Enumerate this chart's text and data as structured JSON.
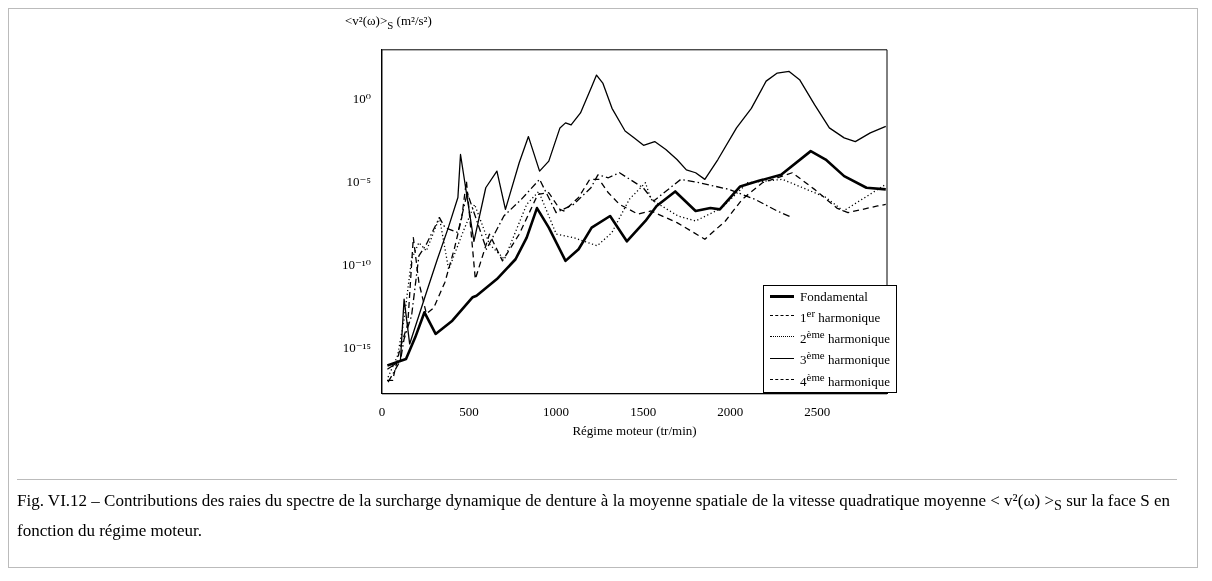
{
  "chart_data": {
    "type": "line",
    "ylabel": "<v²(ω)>$_{S}$ (m²/s²)",
    "xlabel": "Régime moteur (tr/min)",
    "annotations": [
      "Fig. VI.12 – Contributions des raies du spectre de la surcharge dynamique de denture à la moyenne spatiale de la vitesse quadratique moyenne < v²(ω) >$_{S}$ sur la face S en fonction du régime moteur."
    ],
    "xlim": [
      0,
      2900
    ],
    "xticks": [
      0,
      500,
      1000,
      1500,
      2000,
      2500
    ],
    "ylim": [
      2e-18,
      1000
    ],
    "log": "y",
    "yticks": [
      {
        "value": 1e-15,
        "label": "10⁻¹⁵"
      },
      {
        "value": 1e-10,
        "label": "10⁻¹⁰"
      },
      {
        "value": 1e-05,
        "label": "10⁻⁵"
      },
      {
        "value": 1,
        "label": "10⁰"
      }
    ],
    "grid": false,
    "legend": "bottom right",
    "marker": "none",
    "series": [
      {
        "name": "Fondamental",
        "color": "#000000",
        "line_style": "solid",
        "x": [
          31,
          138,
          191,
          244,
          308,
          404,
          521,
          543,
          660,
          767,
          831,
          890,
          958,
          1054,
          1129,
          1204,
          1310,
          1406,
          1513,
          1577,
          1684,
          1801,
          1886,
          1940,
          2057,
          2164,
          2292,
          2462,
          2548,
          2654,
          2782,
          2893
        ],
        "values": [
          1e-16,
          2.5e-16,
          5e-15,
          1.6e-13,
          8e-15,
          5e-14,
          1.3e-12,
          1.6e-12,
          1.6e-11,
          2.5e-10,
          5e-09,
          3e-07,
          2e-08,
          2e-10,
          1e-09,
          2e-08,
          1e-07,
          3e-09,
          5e-08,
          4e-07,
          3e-06,
          2e-07,
          3e-07,
          2.5e-07,
          6e-06,
          1.3e-05,
          3e-05,
          0.0008,
          0.00025,
          2.5e-05,
          5e-06,
          4e-06
        ]
      },
      {
        "name": "1$^{er}$ harmonique",
        "color": "#000000",
        "line_style": "dashed",
        "x": [
          29,
          61,
          106,
          148,
          180,
          212,
          255,
          297,
          361,
          415,
          458,
          485,
          536,
          617,
          692,
          788,
          895,
          958,
          1022,
          1044,
          1129,
          1193,
          1246,
          1300,
          1364,
          1470,
          1545,
          1694,
          1854,
          1972,
          2068,
          2185,
          2356,
          2484,
          2612,
          2676,
          2846,
          2893
        ],
        "values": [
          1.3e-17,
          1.3e-17,
          1.3e-15,
          3e-14,
          5e-09,
          1e-11,
          1.3e-13,
          3e-13,
          1e-11,
          1e-09,
          8e-08,
          1.3e-05,
          1.6e-11,
          8e-09,
          2e-10,
          8e-09,
          2e-06,
          2.5e-06,
          2.5e-07,
          2e-07,
          1.3e-06,
          1.6e-05,
          1.6e-05,
          2.5e-06,
          5e-07,
          1.3e-07,
          2e-07,
          4e-08,
          4e-09,
          5e-08,
          1e-06,
          1e-05,
          4e-05,
          4e-06,
          3e-07,
          1.6e-07,
          4e-07,
          5e-07
        ]
      },
      {
        "name": "2$^{ème}$ harmonique",
        "color": "#000000",
        "line_style": "dotted",
        "x": [
          35,
          90,
          127,
          170,
          212,
          255,
          330,
          383,
          468,
          532,
          617,
          703,
          831,
          900,
          1001,
          1100,
          1236,
          1320,
          1420,
          1513,
          1545,
          1700,
          1801,
          1950,
          2100,
          2300,
          2550,
          2650,
          2893
        ],
        "values": [
          2e-17,
          4e-16,
          6e-14,
          2.5e-10,
          2.5e-09,
          8e-10,
          8e-08,
          6e-11,
          1.3e-08,
          5e-07,
          2e-09,
          2.5e-10,
          5e-07,
          3e-06,
          8e-09,
          5e-09,
          1.6e-09,
          1e-08,
          1e-06,
          1e-05,
          1e-06,
          1e-07,
          5e-08,
          3e-07,
          1e-05,
          1.6e-05,
          1.3e-06,
          2e-07,
          8e-06
        ]
      },
      {
        "name": "3$^{ème}$ harmonique",
        "color": "#000000",
        "line_style": "solid",
        "x": [
          31,
          106,
          127,
          159,
          255,
          318,
          381,
          436,
          451,
          528,
          596,
          660,
          709,
          788,
          841,
          905,
          958,
          1022,
          1054,
          1086,
          1140,
          1204,
          1232,
          1268,
          1321,
          1396,
          1449,
          1502,
          1566,
          1630,
          1694,
          1748,
          1801,
          1854,
          1929,
          2036,
          2121,
          2206,
          2270,
          2338,
          2398,
          2484,
          2569,
          2654,
          2718,
          2804,
          2893
        ],
        "values": [
          6e-17,
          2e-16,
          1e-12,
          2e-15,
          2.5e-12,
          2.5e-10,
          2e-08,
          1.3e-06,
          0.0005,
          3e-09,
          5e-06,
          5e-05,
          2.5e-07,
          0.00016,
          0.006,
          5e-05,
          0.0002,
          0.02,
          0.04,
          0.03,
          0.16,
          6,
          30,
          10,
          0.3,
          0.013,
          0.005,
          0.0018,
          0.003,
          0.001,
          0.00025,
          6e-05,
          4e-05,
          1.6e-05,
          0.00025,
          0.02,
          0.3,
          13,
          40,
          50,
          16,
          0.5,
          0.02,
          0.005,
          0.003,
          0.01,
          0.025
        ]
      },
      {
        "name": "4$^{ème}$ harmonique",
        "color": "#000000",
        "line_style": "dashdot",
        "x": [
          35,
          106,
          127,
          170,
          212,
          255,
          330,
          362,
          436,
          490,
          600,
          700,
          800,
          905,
          1000,
          1100,
          1200,
          1240,
          1300,
          1364,
          1500,
          1560,
          1716,
          1822,
          1993,
          2142,
          2270,
          2356
        ],
        "values": [
          1e-17,
          2e-16,
          4e-15,
          1e-13,
          4e-10,
          2e-09,
          8e-08,
          2e-08,
          1e-08,
          2.5e-06,
          1e-09,
          1e-07,
          1e-06,
          1.6e-05,
          1.6e-07,
          5e-07,
          5e-06,
          3e-05,
          2e-05,
          4e-05,
          5e-06,
          8e-07,
          1.6e-05,
          1e-05,
          4e-06,
          1e-06,
          2e-07,
          8e-08
        ]
      }
    ]
  }
}
